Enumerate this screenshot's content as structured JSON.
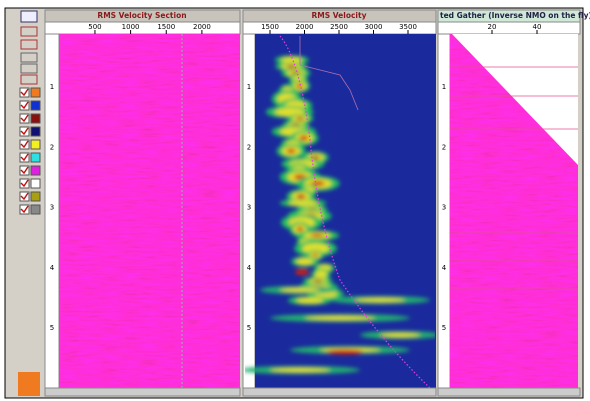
{
  "panels": [
    {
      "title": "RMS Velocity Section",
      "xticks": [
        500,
        1000,
        1500,
        2000
      ],
      "yticks": [
        1,
        2,
        3,
        4,
        5
      ]
    },
    {
      "title": "RMS Velocity",
      "xticks": [
        1500,
        2000,
        2500,
        3000,
        3500
      ],
      "yticks": [
        1,
        2,
        3,
        4,
        5
      ]
    },
    {
      "title": "ted Gather (Inverse NMO on the fly) #",
      "xticks": [
        20,
        40
      ],
      "yticks": [
        1,
        2,
        3,
        4,
        5
      ]
    }
  ]
}
